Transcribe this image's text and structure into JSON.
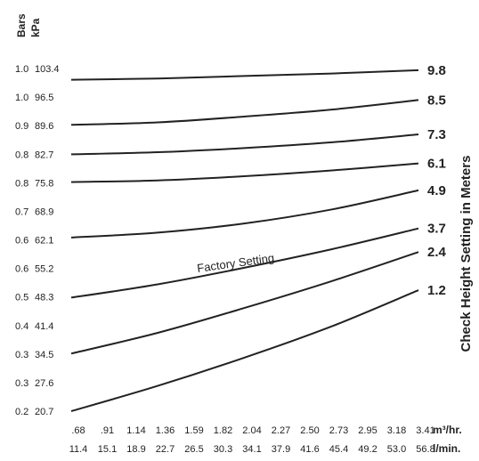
{
  "chart_data": {
    "type": "line",
    "title": "",
    "bars_ticks": [
      "1.0",
      "1.0",
      "0.9",
      "0.8",
      "0.8",
      "0.7",
      "0.6",
      "0.6",
      "0.5",
      "0.4",
      "0.3",
      "0.3",
      "0.2"
    ],
    "kpa_ticks": [
      "103.4",
      "96.5",
      "89.6",
      "82.7",
      "75.8",
      "68.9",
      "62.1",
      "55.2",
      "48.3",
      "41.4",
      "34.5",
      "27.6",
      "20.7"
    ],
    "y_left_unit_bars": "Bars",
    "y_left_unit_kpa": "kPa",
    "ylim_kpa": [
      20.7,
      103.4
    ],
    "x_m3_ticks": [
      ".68",
      ".91",
      "1.14",
      "1.36",
      "1.59",
      "1.82",
      "2.04",
      "2.27",
      "2.50",
      "2.73",
      "2.95",
      "3.18",
      "3.41"
    ],
    "x_lmin_ticks": [
      "11.4",
      "15.1",
      "18.9",
      "22.7",
      "26.5",
      "30.3",
      "34.1",
      "37.9",
      "41.6",
      "45.4",
      "49.2",
      "53.0",
      "56.8"
    ],
    "x_m3_unit": "m³/hr.",
    "x_lmin_unit": "l/min.",
    "xlim_m3_hr": [
      0.68,
      3.41
    ],
    "ylabel_right": "Check Height Setting in Meters",
    "annotation": "Factory Setting",
    "line_color": "#222222",
    "series": [
      {
        "name": "9.8",
        "x": [
          0.68,
          1.36,
          2.04,
          2.73,
          3.41
        ],
        "y": [
          100.7,
          101.0,
          101.6,
          102.2,
          103.0
        ]
      },
      {
        "name": "8.5",
        "x": [
          0.68,
          1.36,
          2.04,
          2.73,
          3.41
        ],
        "y": [
          89.8,
          90.4,
          91.8,
          93.5,
          95.8
        ]
      },
      {
        "name": "7.3",
        "x": [
          0.68,
          1.36,
          2.04,
          2.73,
          3.41
        ],
        "y": [
          82.7,
          83.2,
          84.2,
          85.6,
          87.5
        ]
      },
      {
        "name": "6.1",
        "x": [
          0.68,
          1.36,
          2.04,
          2.73,
          3.41
        ],
        "y": [
          76.0,
          76.4,
          77.4,
          78.8,
          80.5
        ]
      },
      {
        "name": "4.9",
        "x": [
          0.68,
          1.36,
          2.04,
          2.73,
          3.41
        ],
        "y": [
          62.6,
          63.8,
          66.0,
          69.4,
          74.0
        ]
      },
      {
        "name": "3.7",
        "x": [
          0.68,
          1.36,
          2.04,
          2.73,
          3.41
        ],
        "y": [
          48.1,
          51.3,
          55.3,
          59.8,
          64.8
        ]
      },
      {
        "name": "2.4",
        "x": [
          0.68,
          1.36,
          2.04,
          2.73,
          3.41
        ],
        "y": [
          34.6,
          39.6,
          45.6,
          52.1,
          59.1
        ]
      },
      {
        "name": "1.2",
        "x": [
          0.68,
          1.36,
          2.04,
          2.73,
          3.41
        ],
        "y": [
          20.7,
          26.8,
          33.6,
          41.2,
          49.9
        ]
      }
    ]
  }
}
